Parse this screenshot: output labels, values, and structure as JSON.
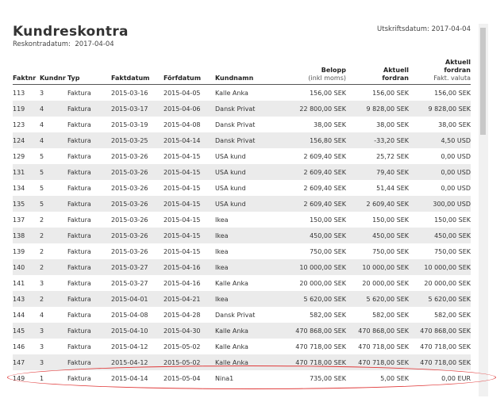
{
  "header": {
    "title": "Kundreskontra",
    "ledger_date_label": "Reskontradatum:",
    "ledger_date": "2017-04-04",
    "print_date_label": "Utskriftsdatum:",
    "print_date": "2017-04-04"
  },
  "columns": {
    "faktnr": "Faktnr",
    "kundnr": "Kundnr",
    "typ": "Typ",
    "faktdatum": "Faktdatum",
    "forfdatum": "Förfdatum",
    "kundnamn": "Kundnamn",
    "belopp": "Belopp",
    "belopp_sub": "(inkl moms)",
    "aktuell1": "Aktuell",
    "fordran1": "fordran",
    "aktuell2": "Aktuell",
    "fordran2": "fordran",
    "valuta": "Fakt. valuta"
  },
  "rows": [
    [
      "113",
      "3",
      "Faktura",
      "2015-03-16",
      "2015-04-05",
      "Kalle Anka",
      "156,00 SEK",
      "156,00 SEK",
      "156,00 SEK"
    ],
    [
      "119",
      "4",
      "Faktura",
      "2015-03-17",
      "2015-04-06",
      "Dansk Privat",
      "22 800,00 SEK",
      "9 828,00 SEK",
      "9 828,00 SEK"
    ],
    [
      "123",
      "4",
      "Faktura",
      "2015-03-19",
      "2015-04-08",
      "Dansk Privat",
      "38,00 SEK",
      "38,00 SEK",
      "38,00 SEK"
    ],
    [
      "124",
      "4",
      "Faktura",
      "2015-03-25",
      "2015-04-14",
      "Dansk Privat",
      "156,80 SEK",
      "-33,20 SEK",
      "4,50 USD"
    ],
    [
      "129",
      "5",
      "Faktura",
      "2015-03-26",
      "2015-04-15",
      "USA kund",
      "2 609,40 SEK",
      "25,72 SEK",
      "0,00 USD"
    ],
    [
      "131",
      "5",
      "Faktura",
      "2015-03-26",
      "2015-04-15",
      "USA kund",
      "2 609,40 SEK",
      "79,40 SEK",
      "0,00 USD"
    ],
    [
      "134",
      "5",
      "Faktura",
      "2015-03-26",
      "2015-04-15",
      "USA kund",
      "2 609,40 SEK",
      "51,44 SEK",
      "0,00 USD"
    ],
    [
      "135",
      "5",
      "Faktura",
      "2015-03-26",
      "2015-04-15",
      "USA kund",
      "2 609,40 SEK",
      "2 609,40 SEK",
      "300,00 USD"
    ],
    [
      "137",
      "2",
      "Faktura",
      "2015-03-26",
      "2015-04-15",
      "Ikea",
      "150,00 SEK",
      "150,00 SEK",
      "150,00 SEK"
    ],
    [
      "138",
      "2",
      "Faktura",
      "2015-03-26",
      "2015-04-15",
      "Ikea",
      "450,00 SEK",
      "450,00 SEK",
      "450,00 SEK"
    ],
    [
      "139",
      "2",
      "Faktura",
      "2015-03-26",
      "2015-04-15",
      "Ikea",
      "750,00 SEK",
      "750,00 SEK",
      "750,00 SEK"
    ],
    [
      "140",
      "2",
      "Faktura",
      "2015-03-27",
      "2015-04-16",
      "Ikea",
      "10 000,00 SEK",
      "10 000,00 SEK",
      "10 000,00 SEK"
    ],
    [
      "141",
      "3",
      "Faktura",
      "2015-03-27",
      "2015-04-16",
      "Kalle Anka",
      "20 000,00 SEK",
      "20 000,00 SEK",
      "20 000,00 SEK"
    ],
    [
      "143",
      "2",
      "Faktura",
      "2015-04-01",
      "2015-04-21",
      "Ikea",
      "5 620,00 SEK",
      "5 620,00 SEK",
      "5 620,00 SEK"
    ],
    [
      "144",
      "4",
      "Faktura",
      "2015-04-08",
      "2015-04-28",
      "Dansk Privat",
      "582,00 SEK",
      "582,00 SEK",
      "582,00 SEK"
    ],
    [
      "145",
      "3",
      "Faktura",
      "2015-04-10",
      "2015-04-30",
      "Kalle Anka",
      "470 868,00 SEK",
      "470 868,00 SEK",
      "470 868,00 SEK"
    ],
    [
      "146",
      "3",
      "Faktura",
      "2015-04-12",
      "2015-05-02",
      "Kalle Anka",
      "470 718,00 SEK",
      "470 718,00 SEK",
      "470 718,00 SEK"
    ],
    [
      "147",
      "3",
      "Faktura",
      "2015-04-12",
      "2015-05-02",
      "Kalle Anka",
      "470 718,00 SEK",
      "470 718,00 SEK",
      "470 718,00 SEK"
    ],
    [
      "149",
      "1",
      "Faktura",
      "2015-04-14",
      "2015-05-04",
      "Nina1",
      "735,00 SEK",
      "5,00 SEK",
      "0,00 EUR"
    ]
  ],
  "highlight": {
    "color": "#e03a3a",
    "row_faktnr": "149"
  }
}
